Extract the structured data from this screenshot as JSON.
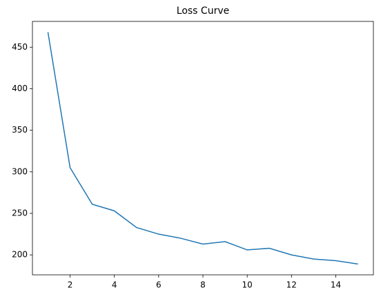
{
  "chart_data": {
    "type": "line",
    "title": "Loss Curve",
    "x": [
      1,
      2,
      3,
      4,
      5,
      6,
      7,
      8,
      9,
      10,
      11,
      12,
      13,
      14,
      15
    ],
    "series": [
      {
        "color": "#1f77b4",
        "values": [
          468,
          305,
          261,
          253,
          233,
          225,
          220,
          213,
          216,
          206,
          208,
          200,
          195,
          193,
          189
        ]
      }
    ],
    "xlim": [
      0.3,
      15.7
    ],
    "xticks": [
      2,
      4,
      6,
      8,
      10,
      12,
      14
    ],
    "ylim": [
      176,
      481
    ],
    "yticks": [
      200,
      250,
      300,
      350,
      400,
      450
    ],
    "grid": false
  }
}
